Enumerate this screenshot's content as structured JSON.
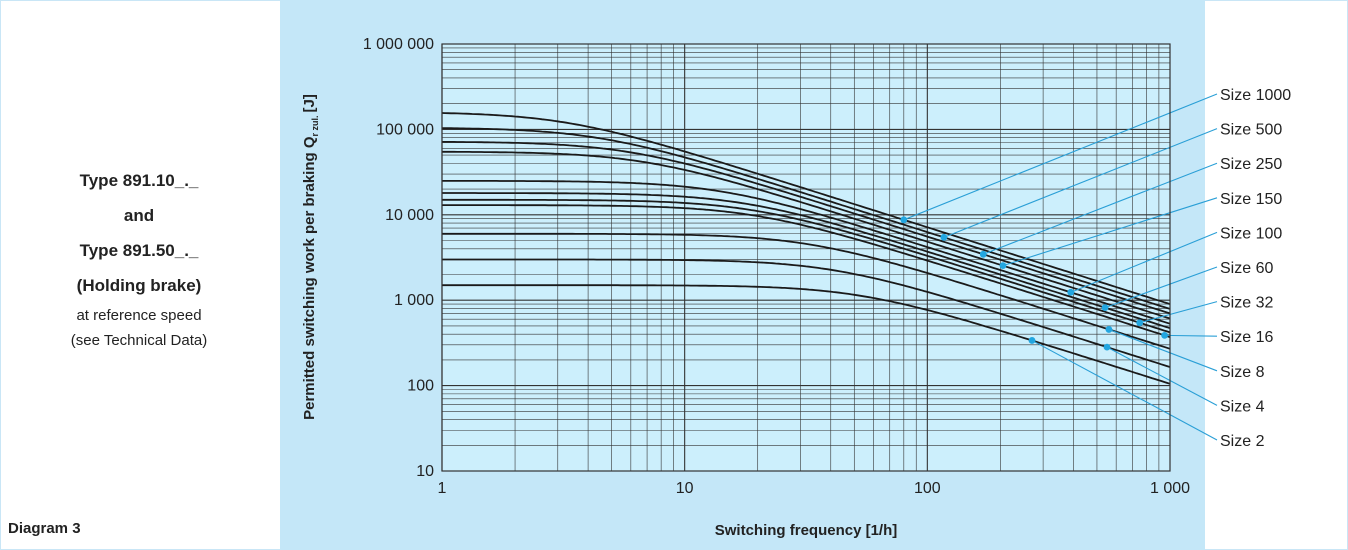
{
  "caption": {
    "line1": "Type 891.10_._",
    "line2": "and",
    "line3": "Type 891.50_._",
    "line4": "(Holding brake)",
    "line5": "at reference speed",
    "line6": "(see Technical Data)"
  },
  "diagram_label": "Diagram 3",
  "chart_data": {
    "type": "line",
    "title": "",
    "xlabel": "Switching frequency [1/h]",
    "ylabel_main": "Permitted switching work per braking Q",
    "ylabel_sub": "r zul.",
    "ylabel_unit": "[J]",
    "x_scale": "log",
    "y_scale": "log",
    "xlim": [
      1,
      1000
    ],
    "ylim": [
      10,
      1000000
    ],
    "x_tick_values": [
      1,
      10,
      100,
      1000
    ],
    "x_tick_labels": [
      "1",
      "10",
      "100",
      "1 000"
    ],
    "y_tick_values": [
      10,
      100,
      1000,
      10000,
      100000,
      1000000
    ],
    "y_tick_labels": [
      "10",
      "100",
      "1 000",
      "10 000",
      "100 000",
      "1 000 000"
    ],
    "grid": true,
    "legend": "right, callout labels with leader lines",
    "series_model": "constant Q0 at low frequency, transitioning to ~f^-0.9 decline at high frequency",
    "series": [
      {
        "name": "Size 1000",
        "plateau": 160000,
        "value_at_1000": 900,
        "marker_x": 80
      },
      {
        "name": "Size 500",
        "plateau": 105000,
        "value_at_1000": 790,
        "marker_x": 117
      },
      {
        "name": "Size 250",
        "plateau": 72000,
        "value_at_1000": 700,
        "marker_x": 170
      },
      {
        "name": "Size 150",
        "plateau": 55000,
        "value_at_1000": 610,
        "marker_x": 205
      },
      {
        "name": "Size 100",
        "plateau": 25000,
        "value_at_1000": 530,
        "marker_x": 390
      },
      {
        "name": "Size 60",
        "plateau": 18000,
        "value_at_1000": 470,
        "marker_x": 540
      },
      {
        "name": "Size 32",
        "plateau": 15000,
        "value_at_1000": 420,
        "marker_x": 750
      },
      {
        "name": "Size 16",
        "plateau": 13000,
        "value_at_1000": 370,
        "marker_x": 950
      },
      {
        "name": "Size 8",
        "plateau": 6000,
        "value_at_1000": 270,
        "marker_x": 560
      },
      {
        "name": "Size 4",
        "plateau": 3000,
        "value_at_1000": 165,
        "marker_x": 550
      },
      {
        "name": "Size 2",
        "plateau": 1500,
        "value_at_1000": 105,
        "marker_x": 270
      }
    ]
  },
  "colors": {
    "panel_bg": "#c4e7f8",
    "plot_bg": "#cceffc",
    "curve": "#1a1a1a",
    "grid": "#333333",
    "leader_line": "#2a9fd6",
    "marker": "#22a6e0"
  }
}
